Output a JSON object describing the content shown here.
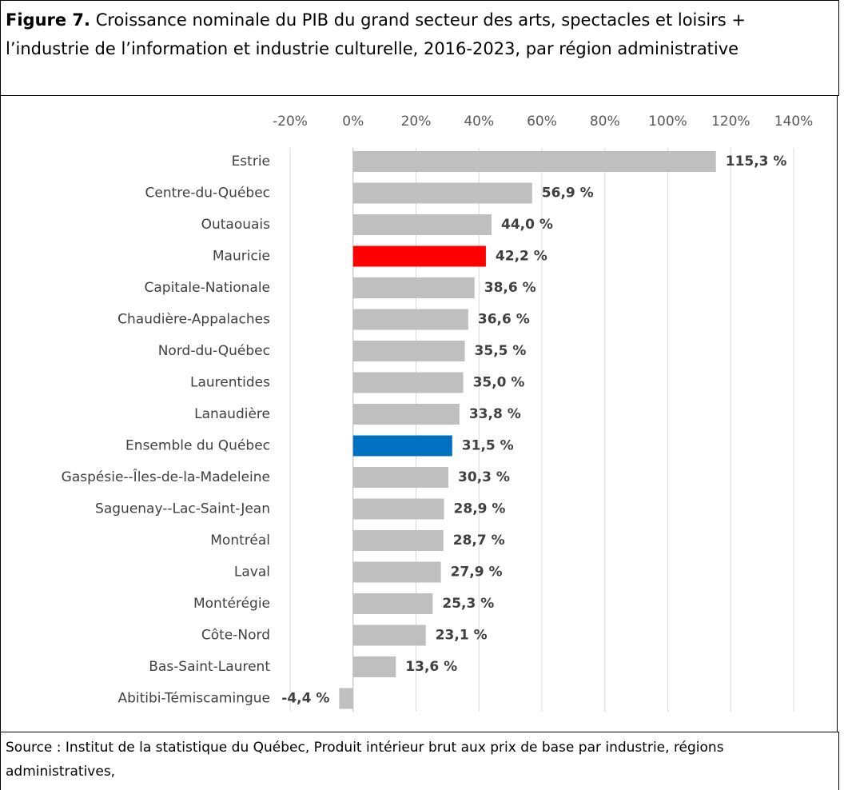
{
  "chart_data": {
    "type": "bar",
    "orientation": "horizontal",
    "title_label": "Figure 7.",
    "title": "Croissance nominale du PIB du grand secteur des arts, spectacles et loisirs + l’industrie de l’information et industrie culturelle, 2016-2023, par région administrative",
    "source": "Source : Institut de la statistique du Québec, Produit intérieur brut aux prix de base par industrie, régions administratives,",
    "categories": [
      "Estrie",
      "Centre-du-Québec",
      "Outaouais",
      "Mauricie",
      "Capitale-Nationale",
      "Chaudière-Appalaches",
      "Nord-du-Québec",
      "Laurentides",
      "Lanaudière",
      "Ensemble du Québec",
      "Gaspésie--Îles-de-la-Madeleine",
      "Saguenay--Lac-Saint-Jean",
      "Montréal",
      "Laval",
      "Montérégie",
      "Côte-Nord",
      "Bas-Saint-Laurent",
      "Abitibi-Témiscamingue"
    ],
    "values": [
      115.3,
      56.9,
      44.0,
      42.2,
      38.6,
      36.6,
      35.5,
      35.0,
      33.8,
      31.5,
      30.3,
      28.9,
      28.7,
      27.9,
      25.3,
      23.1,
      13.6,
      -4.4
    ],
    "value_labels": [
      "115,3 %",
      "56,9 %",
      "44,0 %",
      "42,2 %",
      "38,6 %",
      "36,6 %",
      "35,5 %",
      "35,0 %",
      "33,8 %",
      "31,5 %",
      "30,3 %",
      "28,9 %",
      "28,7 %",
      "27,9 %",
      "25,3 %",
      "23,1 %",
      "13,6 %",
      "-4,4 %"
    ],
    "colors": [
      "#bfbfbf",
      "#bfbfbf",
      "#bfbfbf",
      "#ff0000",
      "#bfbfbf",
      "#bfbfbf",
      "#bfbfbf",
      "#bfbfbf",
      "#bfbfbf",
      "#0070c0",
      "#bfbfbf",
      "#bfbfbf",
      "#bfbfbf",
      "#bfbfbf",
      "#bfbfbf",
      "#bfbfbf",
      "#bfbfbf",
      "#bfbfbf"
    ],
    "xlim": [
      -20,
      140
    ],
    "xticks": [
      {
        "value": -20,
        "label": "-20%"
      },
      {
        "value": 0,
        "label": "0%"
      },
      {
        "value": 20,
        "label": "20%"
      },
      {
        "value": 40,
        "label": "40%"
      },
      {
        "value": 60,
        "label": "60%"
      },
      {
        "value": 80,
        "label": "80%"
      },
      {
        "value": 100,
        "label": "100%"
      },
      {
        "value": 120,
        "label": "120%"
      },
      {
        "value": 140,
        "label": "140%"
      }
    ],
    "grid": true
  }
}
